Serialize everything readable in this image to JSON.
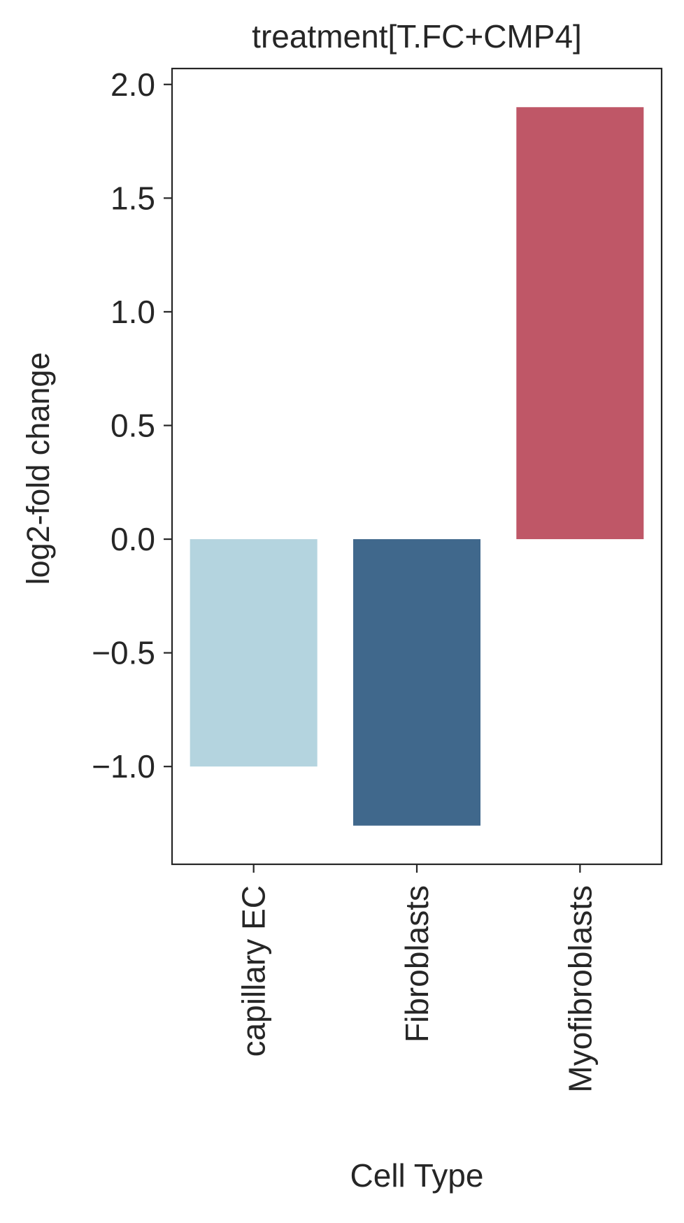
{
  "chart_data": {
    "type": "bar",
    "title": "treatment[T.FC+CMP4]",
    "xlabel": "Cell Type",
    "ylabel": "log2-fold change",
    "categories": [
      "capillary EC",
      "Fibroblasts",
      "Myofibroblasts"
    ],
    "values": [
      -1.0,
      -1.26,
      1.9
    ],
    "colors": [
      "#b4d4df",
      "#40688c",
      "#bf5767"
    ],
    "ylim": [
      -1.43,
      2.07
    ],
    "yticks": [
      -1.0,
      -0.5,
      0.0,
      0.5,
      1.0,
      1.5,
      2.0
    ],
    "ytick_labels": [
      "−1.0",
      "−0.5",
      "0.0",
      "0.5",
      "1.0",
      "1.5",
      "2.0"
    ],
    "grid": false,
    "legend": "none"
  }
}
